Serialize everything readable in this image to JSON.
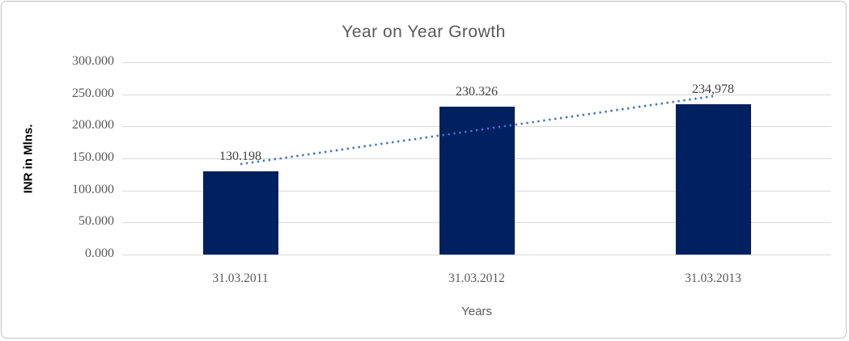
{
  "chart_data": {
    "type": "bar",
    "title": "Year on Year Growth",
    "xlabel": "Years",
    "ylabel": "INR in Mlns.",
    "categories": [
      "31.03.2011",
      "31.03.2012",
      "31.03.2013"
    ],
    "values": [
      130.198,
      230.326,
      234.978
    ],
    "value_labels": [
      "130.198",
      "230.326",
      "234,978"
    ],
    "y_ticks": [
      {
        "value": 300,
        "label": "300.000"
      },
      {
        "value": 250,
        "label": "250.000"
      },
      {
        "value": 200,
        "label": "200.000"
      },
      {
        "value": 150,
        "label": "150.000"
      },
      {
        "value": 100,
        "label": "100.000"
      },
      {
        "value": 50,
        "label": "50.000"
      },
      {
        "value": 0,
        "label": "0.000"
      }
    ],
    "ylim": [
      0,
      300
    ],
    "grid": true,
    "legend": false,
    "trendline": {
      "style": "dotted",
      "start_value": 141,
      "end_value": 247,
      "start_category_index": 0,
      "end_category_index": 2
    },
    "colors": {
      "bar_fill": "#002060",
      "trendline": "#4472C4",
      "gridline": "#d9d9d9",
      "title_text": "#595959",
      "axis_text": "#595959",
      "data_label_text": "#3f3f3f",
      "frame_border": "#c3c3c3",
      "background": "#ffffff"
    }
  }
}
